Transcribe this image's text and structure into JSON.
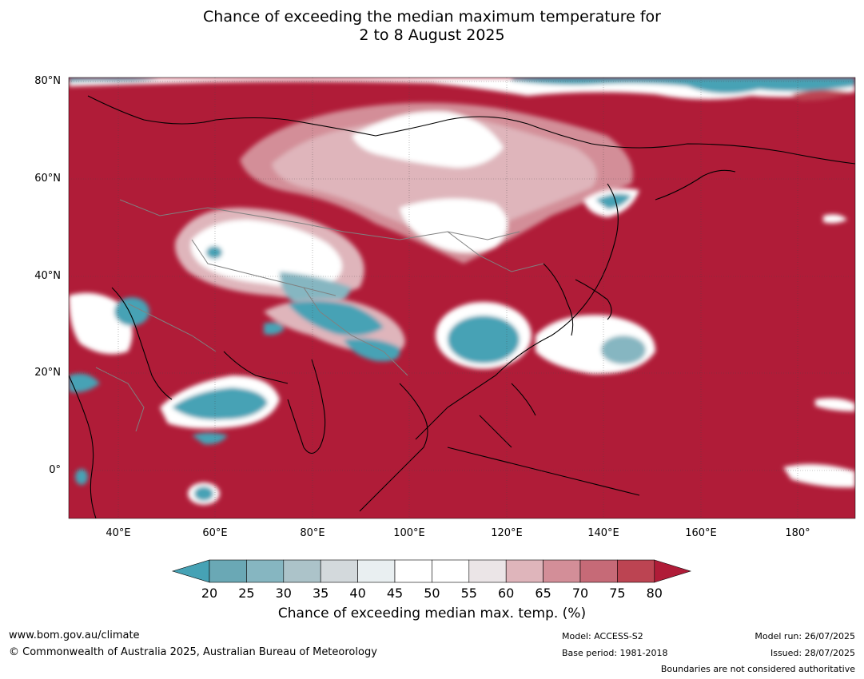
{
  "title": {
    "line1": "Chance of exceeding the median maximum temperature for",
    "line2": "2 to 8 August 2025"
  },
  "map": {
    "lat_labels": [
      "80°N",
      "60°N",
      "40°N",
      "20°N",
      "0°"
    ],
    "lon_labels": [
      "40°E",
      "60°E",
      "80°E",
      "100°E",
      "120°E",
      "140°E",
      "160°E",
      "180°"
    ],
    "colors": {
      "above_80": "#b01c38",
      "below_20": "#46a2b5",
      "neutral": "#ffffff",
      "coast": "#000000",
      "border": "#808080"
    }
  },
  "colorbar": {
    "ticks": [
      "20",
      "25",
      "30",
      "35",
      "40",
      "45",
      "50",
      "55",
      "60",
      "65",
      "70",
      "75",
      "80"
    ],
    "colors": [
      "#46a2b5",
      "#6aa8b5",
      "#86b6c1",
      "#acc3c9",
      "#d3d9dc",
      "#e9eff1",
      "#ffffff",
      "#ffffff",
      "#ebe5e7",
      "#dfb5bb",
      "#d38e98",
      "#c66a77",
      "#bc4452",
      "#b01c38"
    ],
    "label": "Chance of exceeding median max. temp. (%)"
  },
  "footer": {
    "website": "www.bom.gov.au/climate",
    "copyright": "© Commonwealth of Australia 2025, Australian Bureau of Meteorology",
    "model": "Model: ACCESS-S2",
    "base_period": "Base period: 1981-2018",
    "model_run": "Model run: 26/07/2025",
    "issued": "Issued: 28/07/2025",
    "disclaimer": "Boundaries are not considered authoritative"
  }
}
